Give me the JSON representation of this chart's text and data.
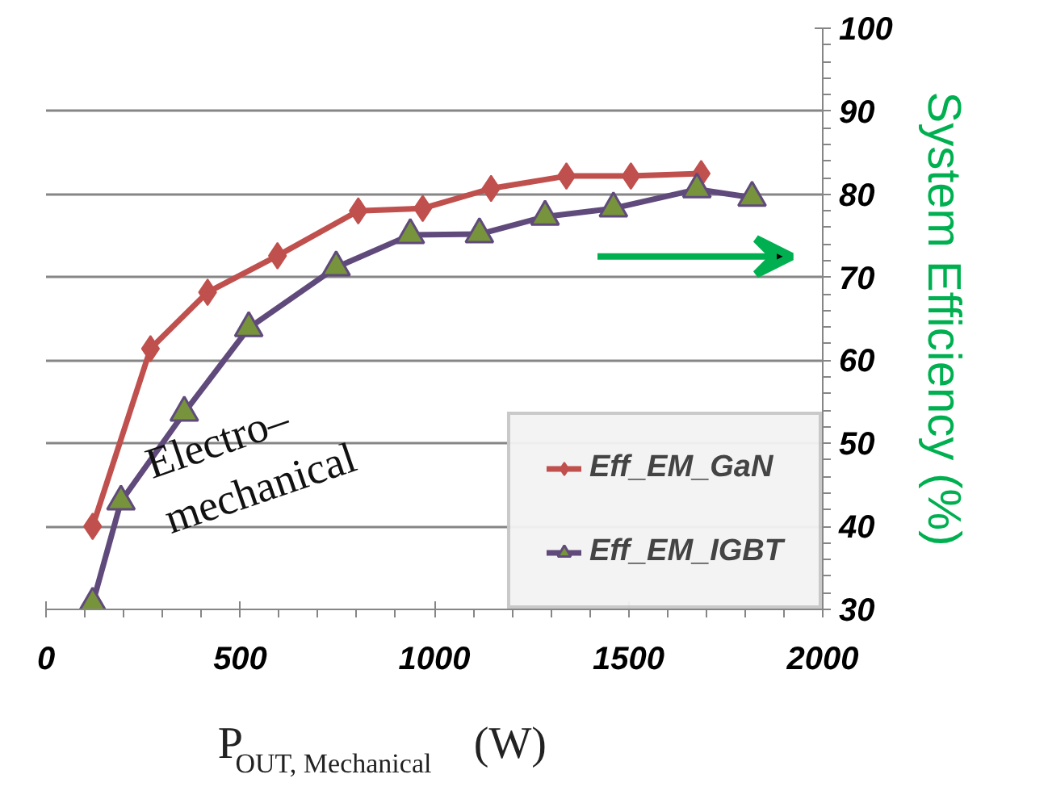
{
  "chart_data": {
    "type": "line",
    "ylabel": "System Efficiency (%)",
    "xlabel": "P$_{OUT, Mechanical}$ (W)",
    "xlim": [
      0,
      2000
    ],
    "xticks": [
      0,
      500,
      1000,
      1500,
      2000
    ],
    "ylim": [
      30,
      100
    ],
    "yticks": [
      30,
      40,
      50,
      60,
      70,
      80,
      90,
      100
    ],
    "grid": "y",
    "legend": "bottom right",
    "line_style": "solid",
    "annotations": [
      "Electro–mechanical"
    ],
    "series": [
      {
        "name": "Eff_EM_GaN",
        "color": "#c0504d",
        "marker": "diamond",
        "x": [
          120,
          269,
          416,
          596,
          804,
          970,
          1146,
          1340,
          1506,
          1687
        ],
        "values": [
          40.0,
          61.4,
          68.2,
          72.6,
          78.0,
          78.3,
          80.7,
          82.2,
          82.2,
          82.5
        ]
      },
      {
        "name": "Eff_EM_IGBT",
        "color": "#604a7b",
        "marker": "triangle",
        "x": [
          120,
          193,
          356,
          522,
          747,
          938,
          1116,
          1285,
          1461,
          1676,
          1818
        ],
        "values": [
          30.7,
          43.0,
          53.7,
          63.9,
          71.2,
          75.1,
          75.2,
          77.3,
          78.3,
          80.6,
          79.6
        ]
      }
    ]
  }
}
